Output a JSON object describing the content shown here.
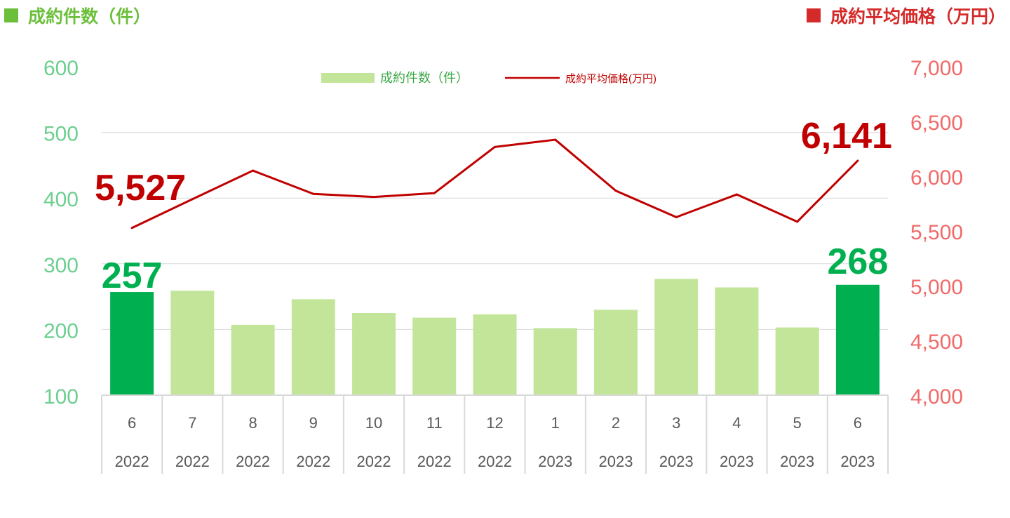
{
  "headers": {
    "left": "成約件数（件）",
    "right": "成約平均価格（万円）"
  },
  "colors": {
    "bar": "#c2e59a",
    "bar_highlight": "#00b050",
    "line": "#c00000",
    "left_axis": "#6ccf8f",
    "right_axis": "#f06a6a",
    "grid": "#d9d9d9",
    "left_header": "#6bbf3a",
    "right_header": "#d42a2a"
  },
  "chart_data": {
    "type": "bar",
    "categories": [
      "6",
      "7",
      "8",
      "9",
      "10",
      "11",
      "12",
      "1",
      "2",
      "3",
      "4",
      "5",
      "6"
    ],
    "years": [
      "2022",
      "2022",
      "2022",
      "2022",
      "2022",
      "2022",
      "2022",
      "2023",
      "2023",
      "2023",
      "2023",
      "2023",
      "2023"
    ],
    "series": [
      {
        "name": "成約件数（件）",
        "type": "bar",
        "axis": "left",
        "values": [
          257,
          259,
          207,
          246,
          225,
          218,
          223,
          202,
          230,
          277,
          264,
          203,
          268
        ],
        "highlight": [
          0,
          12
        ]
      },
      {
        "name": "成約平均価格(万円)",
        "type": "line",
        "axis": "right",
        "values": [
          5527,
          5790,
          6051,
          5838,
          5810,
          5845,
          6267,
          6333,
          5867,
          5626,
          5833,
          5584,
          6141
        ]
      }
    ],
    "y_left": {
      "ylim": [
        100,
        600
      ],
      "ticks": [
        "100",
        "200",
        "300",
        "400",
        "500",
        "600"
      ]
    },
    "y_right": {
      "ylim": [
        4000,
        7000
      ],
      "ticks": [
        "4,000",
        "4,500",
        "5,000",
        "5,500",
        "6,000",
        "6,500",
        "7,000"
      ]
    },
    "annotations": {
      "bar_first": "257",
      "bar_last": "268",
      "line_first": "5,527",
      "line_last": "6,141"
    },
    "legend": "top-center",
    "grid": true
  }
}
